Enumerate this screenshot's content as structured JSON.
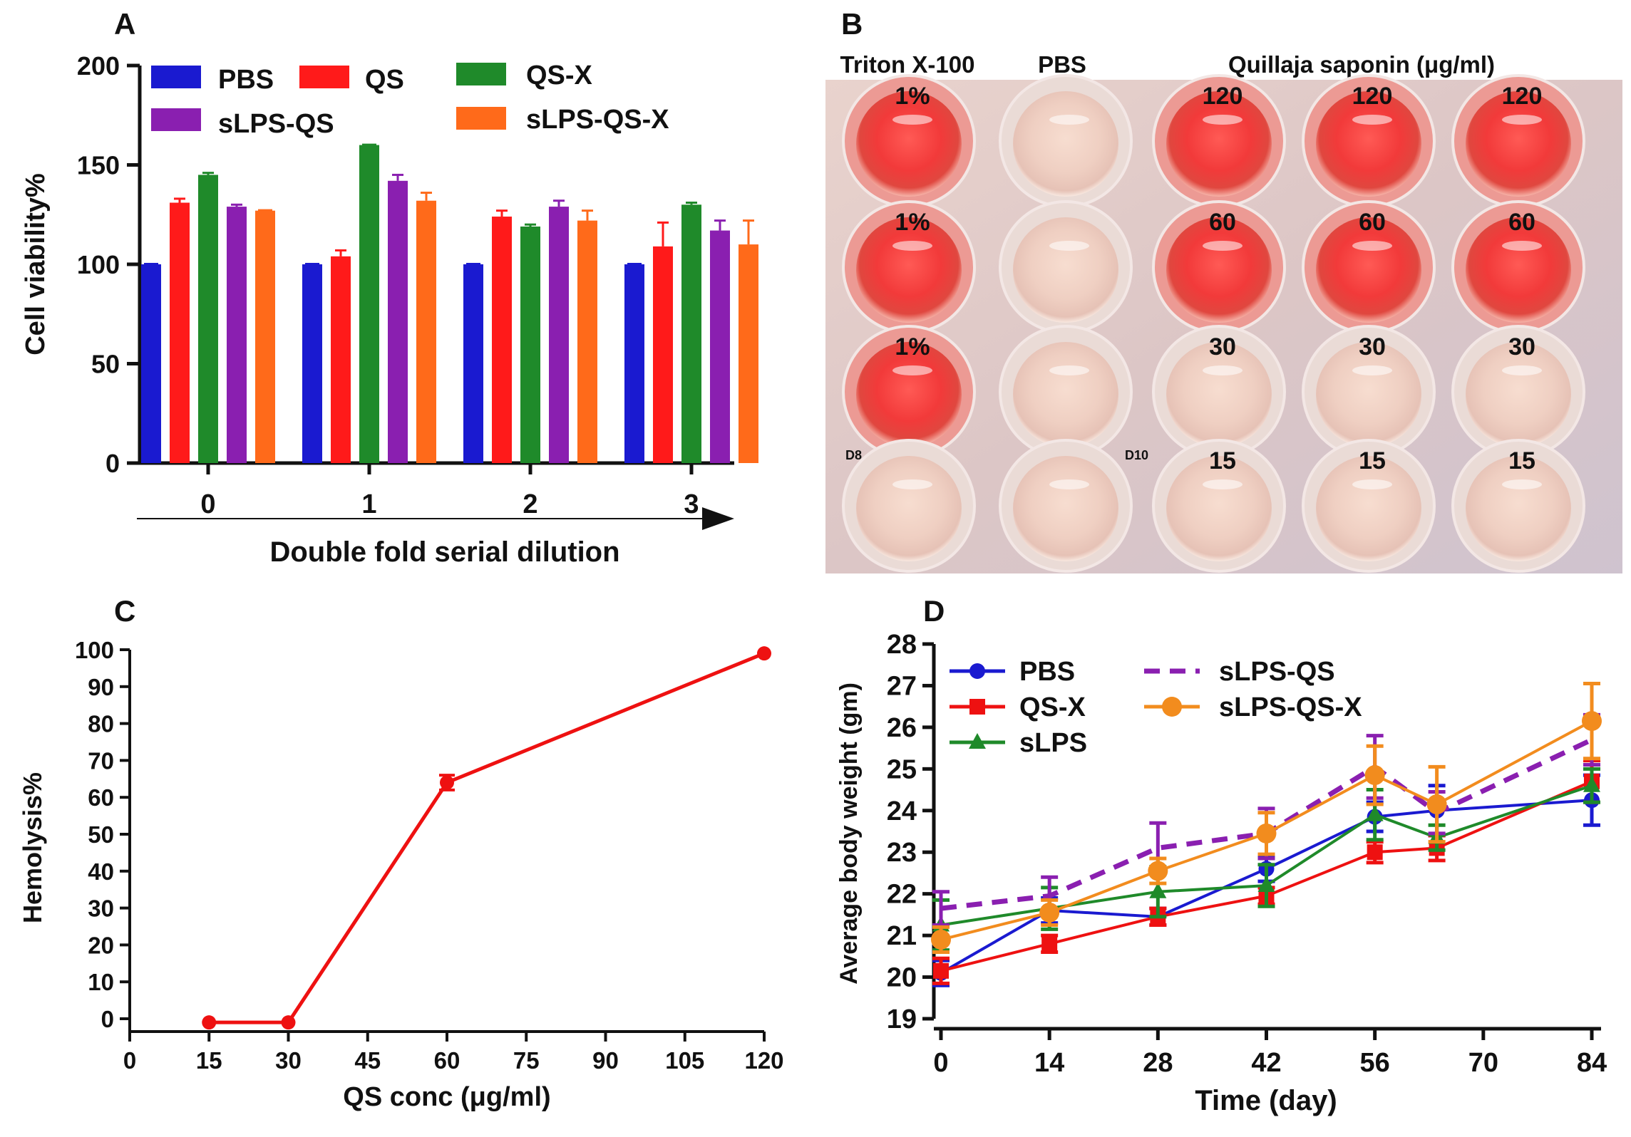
{
  "figure": {
    "panel_labels": [
      "A",
      "B",
      "C",
      "D"
    ]
  },
  "chart_data": [
    {
      "panel": "A",
      "type": "bar",
      "title": "",
      "xlabel": "Double fold serial dilution",
      "ylabel": "Cell viability%",
      "ylim": [
        0,
        200
      ],
      "yticks": [
        0,
        50,
        100,
        150,
        200
      ],
      "categories": [
        "0",
        "1",
        "2",
        "3"
      ],
      "series": [
        {
          "name": "PBS",
          "color": "#1a1ad0",
          "values": [
            100,
            100,
            100,
            100
          ],
          "errors": [
            0,
            0,
            0,
            0
          ]
        },
        {
          "name": "QS",
          "color": "#ff1a1a",
          "values": [
            131,
            104,
            124,
            109
          ],
          "errors": [
            2,
            3,
            3,
            12
          ]
        },
        {
          "name": "QS-X",
          "color": "#1f8a2a",
          "values": [
            145,
            160,
            119,
            130
          ],
          "errors": [
            1,
            0,
            1,
            1
          ]
        },
        {
          "name": "sLPS-QS",
          "color": "#8a1fb0",
          "values": [
            129,
            142,
            129,
            117
          ],
          "errors": [
            1,
            3,
            3,
            5
          ]
        },
        {
          "name": "sLPS-QS-X",
          "color": "#ff6a1a",
          "values": [
            127,
            132,
            122,
            110
          ],
          "errors": [
            0,
            4,
            5,
            12
          ]
        }
      ],
      "legend_position": "top"
    },
    {
      "panel": "C",
      "type": "line",
      "title": "",
      "xlabel": "QS conc (μg/ml)",
      "ylabel": "Hemolysis%",
      "xlim": [
        0,
        120
      ],
      "ylim": [
        0,
        100
      ],
      "xticks": [
        0,
        15,
        30,
        45,
        60,
        75,
        90,
        105,
        120
      ],
      "yticks": [
        0,
        10,
        20,
        30,
        40,
        50,
        60,
        70,
        80,
        90,
        100
      ],
      "series": [
        {
          "name": "Hemolysis",
          "color": "#ee1111",
          "x": [
            15,
            30,
            60,
            120
          ],
          "y": [
            -1,
            -1,
            64,
            99
          ],
          "errors": [
            0,
            0,
            2,
            0
          ]
        }
      ]
    },
    {
      "panel": "D",
      "type": "line",
      "title": "",
      "xlabel": "Time (day)",
      "ylabel": "Average body weight (gm)",
      "xlim": [
        0,
        84
      ],
      "ylim": [
        19,
        28
      ],
      "xticks": [
        0,
        14,
        28,
        42,
        56,
        70,
        84
      ],
      "yticks": [
        19,
        20,
        21,
        22,
        23,
        24,
        25,
        26,
        27,
        28
      ],
      "series": [
        {
          "name": "PBS",
          "color": "#1a1ad0",
          "marker": "circle",
          "dashed": false,
          "x": [
            0,
            14,
            28,
            42,
            56,
            64,
            84
          ],
          "y": [
            20.1,
            21.6,
            21.45,
            22.6,
            23.85,
            24.0,
            24.25
          ],
          "errors": [
            0.3,
            0.3,
            0.2,
            0.3,
            0.35,
            0.6,
            0.6
          ]
        },
        {
          "name": "QS-X",
          "color": "#ee1111",
          "marker": "square",
          "dashed": false,
          "x": [
            0,
            14,
            28,
            42,
            56,
            64,
            84
          ],
          "y": [
            20.15,
            20.8,
            21.45,
            21.95,
            23.0,
            23.1,
            24.7
          ],
          "errors": [
            0.3,
            0.2,
            0.2,
            0.2,
            0.25,
            0.3,
            0.5
          ]
        },
        {
          "name": "sLPS",
          "color": "#1f8a2a",
          "marker": "triangle",
          "dashed": false,
          "x": [
            0,
            14,
            28,
            42,
            56,
            64,
            84
          ],
          "y": [
            21.25,
            21.65,
            22.05,
            22.2,
            23.9,
            23.35,
            24.6
          ],
          "errors": [
            0.6,
            0.5,
            0.6,
            0.5,
            0.6,
            0.3,
            0.4
          ]
        },
        {
          "name": "sLPS-QS",
          "color": "#8a1fb0",
          "marker": "none",
          "dashed": true,
          "x": [
            0,
            14,
            28,
            42,
            56,
            64,
            84
          ],
          "y": [
            21.65,
            21.95,
            23.1,
            23.45,
            25.05,
            23.95,
            25.7
          ],
          "errors": [
            0.4,
            0.45,
            0.6,
            0.6,
            0.75,
            0.5,
            0.6
          ]
        },
        {
          "name": "sLPS-QS-X",
          "color": "#f28c1e",
          "marker": "circle",
          "dashed": false,
          "x": [
            0,
            14,
            28,
            42,
            56,
            64,
            84
          ],
          "y": [
            20.9,
            21.55,
            22.55,
            23.45,
            24.85,
            24.15,
            26.15
          ],
          "errors": [
            0.3,
            0.3,
            0.3,
            0.5,
            0.7,
            0.9,
            0.9
          ]
        }
      ],
      "legend_position": "top-left"
    }
  ],
  "photo": {
    "panel": "B",
    "column_headers": [
      "Triton X-100",
      "PBS",
      "Quillaja saponin (μg/ml)"
    ],
    "rows": [
      {
        "labels": [
          "1%",
          "",
          "120",
          "120",
          "120"
        ],
        "colors": [
          "red",
          "clear",
          "red",
          "red",
          "red"
        ]
      },
      {
        "labels": [
          "1%",
          "",
          "60",
          "60",
          "60"
        ],
        "colors": [
          "red",
          "clear",
          "red",
          "red",
          "red"
        ]
      },
      {
        "labels": [
          "1%",
          "",
          "30",
          "30",
          "30"
        ],
        "colors": [
          "red",
          "clear",
          "clear",
          "clear",
          "clear"
        ]
      },
      {
        "labels": [
          "",
          "",
          "15",
          "15",
          "15"
        ],
        "colors": [
          "clear",
          "clear",
          "clear",
          "clear",
          "clear"
        ]
      }
    ],
    "plate_markings": [
      "D8",
      "D10"
    ]
  }
}
